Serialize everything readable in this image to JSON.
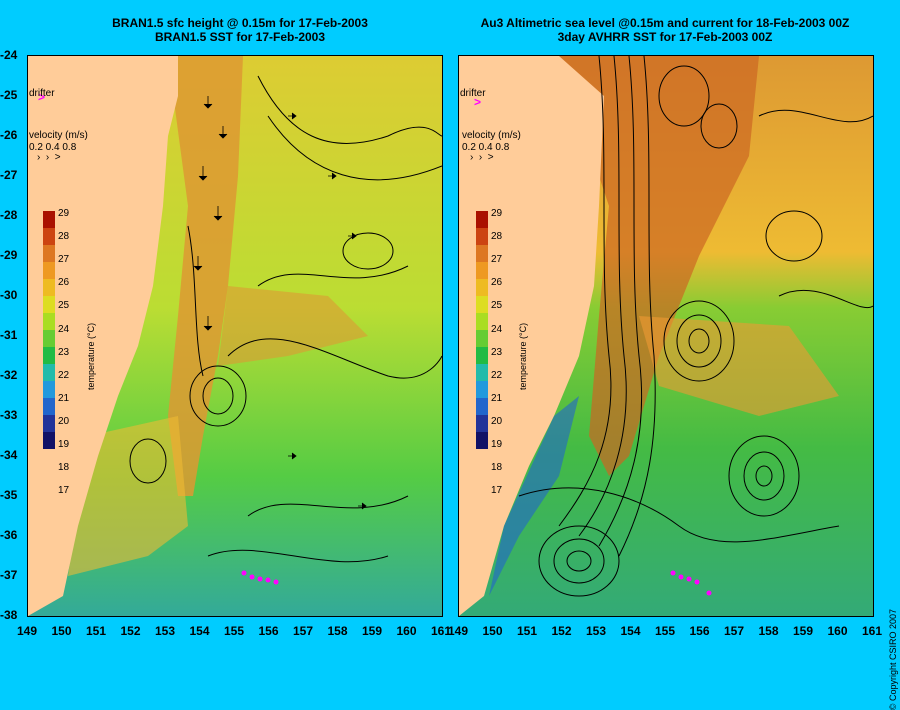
{
  "left_panel": {
    "title_line1": "BRAN1.5 sfc height @ 0.15m for 17-Feb-2003",
    "title_line2": "BRAN1.5 SST for 17-Feb-2003"
  },
  "right_panel": {
    "title_line1": "Au3 Altimetric sea level  @0.15m and current for 18-Feb-2003 00Z",
    "title_line2": "3day AVHRR SST for 17-Feb-2003 00Z"
  },
  "drifter_label": "drifter",
  "velocity_legend": {
    "title": "velocity (m/s)",
    "values": "0.2 0.4 0.8"
  },
  "colorbar": {
    "title": "temperature (°C)",
    "labels": [
      "29",
      "28",
      "27",
      "26",
      "25",
      "24",
      "23",
      "22",
      "21",
      "20",
      "19",
      "18",
      "17"
    ]
  },
  "y_axis_labels": [
    "-24",
    "-25",
    "-26",
    "-27",
    "-28",
    "-29",
    "-30",
    "-31",
    "-32",
    "-33",
    "-34",
    "-35",
    "-36",
    "-37",
    "-38"
  ],
  "x_axis_labels": [
    "149",
    "150",
    "151",
    "152",
    "153",
    "154",
    "155",
    "156",
    "157",
    "158",
    "159",
    "160",
    "161"
  ],
  "copyright": "© Copyright CSIRO 2007",
  "colors": {
    "background": "#00ccff",
    "land": "#ffcc99",
    "drifter": "#ff00ff"
  }
}
